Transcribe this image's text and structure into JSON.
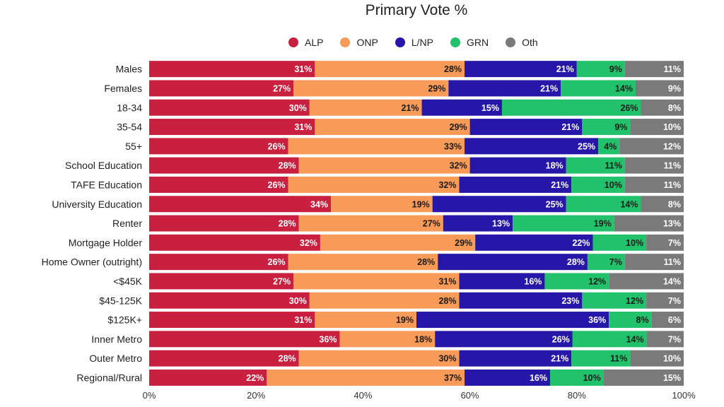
{
  "chart_data": {
    "type": "bar",
    "orientation": "horizontal",
    "stacked": true,
    "title": "Primary Vote %",
    "categories": [
      "Males",
      "Females",
      "18-34",
      "35-54",
      "55+",
      "School Education",
      "TAFE Education",
      "University Education",
      "Renter",
      "Mortgage Holder",
      "Home Owner (outright)",
      "<$45K",
      "$45-125K",
      "$125K+",
      "Inner Metro",
      "Outer Metro",
      "Regional/Rural"
    ],
    "series": [
      {
        "name": "ALP",
        "color": "#c8203e",
        "values": [
          31,
          27,
          30,
          31,
          26,
          28,
          26,
          34,
          28,
          32,
          26,
          27,
          30,
          31,
          36,
          28,
          22
        ]
      },
      {
        "name": "ONP",
        "color": "#f89a58",
        "values": [
          28,
          29,
          21,
          29,
          33,
          32,
          32,
          19,
          27,
          29,
          28,
          31,
          28,
          19,
          18,
          30,
          37
        ]
      },
      {
        "name": "L/NP",
        "color": "#2617a8",
        "values": [
          21,
          21,
          15,
          21,
          25,
          18,
          21,
          25,
          13,
          22,
          28,
          16,
          23,
          36,
          26,
          21,
          16
        ]
      },
      {
        "name": "GRN",
        "color": "#21c26b",
        "values": [
          9,
          14,
          26,
          9,
          4,
          11,
          10,
          14,
          19,
          10,
          7,
          12,
          12,
          8,
          14,
          11,
          10
        ]
      },
      {
        "name": "Oth",
        "color": "#7a7a7a",
        "values": [
          11,
          9,
          8,
          10,
          12,
          11,
          11,
          8,
          13,
          7,
          11,
          14,
          7,
          6,
          7,
          10,
          15
        ]
      }
    ],
    "value_suffix": "%",
    "xlim": [
      0,
      100
    ],
    "xticks": [
      "0%",
      "20%",
      "40%",
      "60%",
      "80%",
      "100%"
    ],
    "legend_position": "top",
    "grid": false
  }
}
